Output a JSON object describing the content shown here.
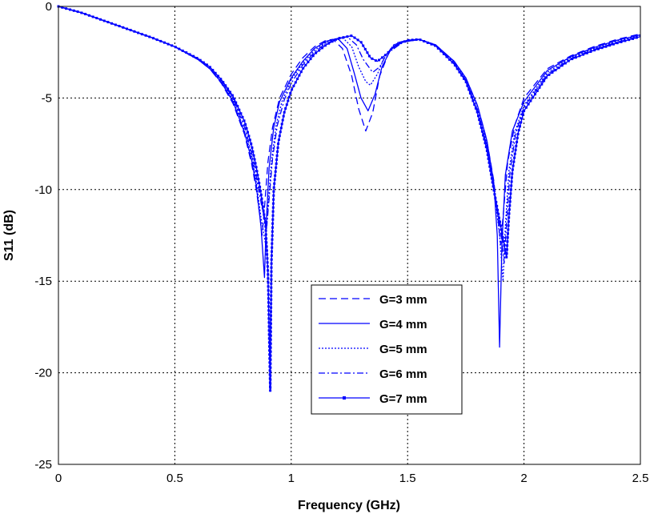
{
  "chart_data": {
    "type": "line",
    "title": "",
    "xlabel": "Frequency (GHz)",
    "ylabel": "S11 (dB)",
    "xlim": [
      0,
      2.5
    ],
    "ylim": [
      -25,
      0
    ],
    "xticks": [
      "0",
      "0.5",
      "1",
      "1.5",
      "2",
      "2.5"
    ],
    "xtick_values": [
      0,
      0.5,
      1,
      1.5,
      2,
      2.5
    ],
    "yticks": [
      "0",
      "-5",
      "-10",
      "-15",
      "-20",
      "-25"
    ],
    "ytick_values": [
      0,
      -5,
      -10,
      -15,
      -20,
      -25
    ],
    "grid": true,
    "legend_placement": "lower-center",
    "color": "#0000ff",
    "series": [
      {
        "name": "G=3 mm",
        "style": "dashed",
        "points": [
          [
            0,
            0
          ],
          [
            0.1,
            -0.35
          ],
          [
            0.2,
            -0.8
          ],
          [
            0.3,
            -1.25
          ],
          [
            0.4,
            -1.7
          ],
          [
            0.5,
            -2.2
          ],
          [
            0.6,
            -2.9
          ],
          [
            0.65,
            -3.4
          ],
          [
            0.7,
            -4.2
          ],
          [
            0.75,
            -5.3
          ],
          [
            0.8,
            -7
          ],
          [
            0.83,
            -8.6
          ],
          [
            0.85,
            -10
          ],
          [
            0.865,
            -11.4
          ],
          [
            0.875,
            -12.5
          ],
          [
            0.885,
            -11
          ],
          [
            0.9,
            -8.5
          ],
          [
            0.92,
            -6.6
          ],
          [
            0.95,
            -5
          ],
          [
            1.0,
            -3.7
          ],
          [
            1.05,
            -2.8
          ],
          [
            1.1,
            -2.2
          ],
          [
            1.15,
            -1.85
          ],
          [
            1.18,
            -1.8
          ],
          [
            1.22,
            -2.3
          ],
          [
            1.26,
            -3.8
          ],
          [
            1.29,
            -5.6
          ],
          [
            1.32,
            -6.8
          ],
          [
            1.35,
            -5.8
          ],
          [
            1.38,
            -3.8
          ],
          [
            1.42,
            -2.5
          ],
          [
            1.48,
            -1.95
          ],
          [
            1.55,
            -1.8
          ],
          [
            1.62,
            -2.1
          ],
          [
            1.7,
            -3.0
          ],
          [
            1.75,
            -3.9
          ],
          [
            1.8,
            -5.4
          ],
          [
            1.84,
            -7.3
          ],
          [
            1.87,
            -9.5
          ],
          [
            1.89,
            -11.8
          ],
          [
            1.9,
            -13
          ],
          [
            1.91,
            -11.5
          ],
          [
            1.93,
            -8.5
          ],
          [
            1.96,
            -6.5
          ],
          [
            2.0,
            -5
          ],
          [
            2.1,
            -3.4
          ],
          [
            2.2,
            -2.7
          ],
          [
            2.3,
            -2.2
          ],
          [
            2.4,
            -1.8
          ],
          [
            2.5,
            -1.5
          ]
        ]
      },
      {
        "name": "G=4 mm",
        "style": "solid",
        "points": [
          [
            0,
            0
          ],
          [
            0.1,
            -0.35
          ],
          [
            0.2,
            -0.8
          ],
          [
            0.3,
            -1.25
          ],
          [
            0.4,
            -1.7
          ],
          [
            0.5,
            -2.2
          ],
          [
            0.6,
            -2.9
          ],
          [
            0.65,
            -3.4
          ],
          [
            0.7,
            -4.15
          ],
          [
            0.75,
            -5.2
          ],
          [
            0.8,
            -6.9
          ],
          [
            0.83,
            -8.4
          ],
          [
            0.85,
            -9.8
          ],
          [
            0.87,
            -12
          ],
          [
            0.885,
            -14.8
          ],
          [
            0.892,
            -12
          ],
          [
            0.905,
            -8.8
          ],
          [
            0.925,
            -6.6
          ],
          [
            0.95,
            -5.2
          ],
          [
            1.0,
            -3.9
          ],
          [
            1.05,
            -3.0
          ],
          [
            1.1,
            -2.3
          ],
          [
            1.15,
            -1.9
          ],
          [
            1.2,
            -1.75
          ],
          [
            1.24,
            -2.3
          ],
          [
            1.27,
            -3.6
          ],
          [
            1.3,
            -5
          ],
          [
            1.33,
            -5.7
          ],
          [
            1.36,
            -4.8
          ],
          [
            1.39,
            -3.3
          ],
          [
            1.43,
            -2.3
          ],
          [
            1.48,
            -1.95
          ],
          [
            1.55,
            -1.8
          ],
          [
            1.62,
            -2.1
          ],
          [
            1.7,
            -3.0
          ],
          [
            1.75,
            -3.9
          ],
          [
            1.8,
            -5.4
          ],
          [
            1.84,
            -7.3
          ],
          [
            1.87,
            -9.6
          ],
          [
            1.885,
            -12.5
          ],
          [
            1.895,
            -18.6
          ],
          [
            1.905,
            -13
          ],
          [
            1.92,
            -9.2
          ],
          [
            1.95,
            -6.8
          ],
          [
            2.0,
            -5.2
          ],
          [
            2.1,
            -3.5
          ],
          [
            2.2,
            -2.75
          ],
          [
            2.3,
            -2.25
          ],
          [
            2.4,
            -1.85
          ],
          [
            2.5,
            -1.55
          ]
        ]
      },
      {
        "name": "G=5 mm",
        "style": "dotted",
        "points": [
          [
            0,
            0
          ],
          [
            0.1,
            -0.35
          ],
          [
            0.2,
            -0.8
          ],
          [
            0.3,
            -1.25
          ],
          [
            0.4,
            -1.7
          ],
          [
            0.5,
            -2.2
          ],
          [
            0.6,
            -2.9
          ],
          [
            0.65,
            -3.4
          ],
          [
            0.7,
            -4.1
          ],
          [
            0.75,
            -5.1
          ],
          [
            0.8,
            -6.8
          ],
          [
            0.83,
            -8.2
          ],
          [
            0.85,
            -9.6
          ],
          [
            0.87,
            -11.5
          ],
          [
            0.89,
            -13
          ],
          [
            0.9,
            -11
          ],
          [
            0.915,
            -8.5
          ],
          [
            0.935,
            -6.5
          ],
          [
            0.96,
            -5.2
          ],
          [
            1.0,
            -4.0
          ],
          [
            1.05,
            -3.1
          ],
          [
            1.1,
            -2.4
          ],
          [
            1.15,
            -1.95
          ],
          [
            1.22,
            -1.7
          ],
          [
            1.26,
            -2.2
          ],
          [
            1.29,
            -3.3
          ],
          [
            1.32,
            -4.1
          ],
          [
            1.34,
            -4.3
          ],
          [
            1.37,
            -3.7
          ],
          [
            1.4,
            -2.8
          ],
          [
            1.44,
            -2.1
          ],
          [
            1.5,
            -1.85
          ],
          [
            1.55,
            -1.8
          ],
          [
            1.62,
            -2.1
          ],
          [
            1.7,
            -3.05
          ],
          [
            1.75,
            -4
          ],
          [
            1.8,
            -5.6
          ],
          [
            1.84,
            -7.5
          ],
          [
            1.87,
            -9.8
          ],
          [
            1.895,
            -12.5
          ],
          [
            1.91,
            -15
          ],
          [
            1.92,
            -12
          ],
          [
            1.935,
            -9
          ],
          [
            1.96,
            -6.9
          ],
          [
            2.0,
            -5.4
          ],
          [
            2.1,
            -3.6
          ],
          [
            2.2,
            -2.8
          ],
          [
            2.3,
            -2.3
          ],
          [
            2.4,
            -1.9
          ],
          [
            2.5,
            -1.6
          ]
        ]
      },
      {
        "name": "G=6 mm",
        "style": "dashdot",
        "points": [
          [
            0,
            0
          ],
          [
            0.1,
            -0.35
          ],
          [
            0.2,
            -0.8
          ],
          [
            0.3,
            -1.25
          ],
          [
            0.4,
            -1.7
          ],
          [
            0.5,
            -2.2
          ],
          [
            0.6,
            -2.9
          ],
          [
            0.65,
            -3.4
          ],
          [
            0.7,
            -4.05
          ],
          [
            0.75,
            -5.0
          ],
          [
            0.8,
            -6.6
          ],
          [
            0.83,
            -8
          ],
          [
            0.85,
            -9.3
          ],
          [
            0.875,
            -11
          ],
          [
            0.895,
            -12
          ],
          [
            0.905,
            -10.5
          ],
          [
            0.92,
            -8.3
          ],
          [
            0.94,
            -6.5
          ],
          [
            0.97,
            -5.1
          ],
          [
            1.0,
            -4.2
          ],
          [
            1.05,
            -3.2
          ],
          [
            1.1,
            -2.5
          ],
          [
            1.15,
            -2.0
          ],
          [
            1.24,
            -1.65
          ],
          [
            1.28,
            -2.1
          ],
          [
            1.31,
            -2.9
          ],
          [
            1.35,
            -3.6
          ],
          [
            1.38,
            -3.3
          ],
          [
            1.41,
            -2.6
          ],
          [
            1.45,
            -2.0
          ],
          [
            1.5,
            -1.85
          ],
          [
            1.55,
            -1.8
          ],
          [
            1.62,
            -2.1
          ],
          [
            1.7,
            -3.1
          ],
          [
            1.75,
            -4.05
          ],
          [
            1.8,
            -5.7
          ],
          [
            1.84,
            -7.6
          ],
          [
            1.87,
            -9.9
          ],
          [
            1.9,
            -12.3
          ],
          [
            1.915,
            -14
          ],
          [
            1.925,
            -11.8
          ],
          [
            1.94,
            -9
          ],
          [
            1.965,
            -6.9
          ],
          [
            2.0,
            -5.5
          ],
          [
            2.1,
            -3.7
          ],
          [
            2.2,
            -2.85
          ],
          [
            2.3,
            -2.35
          ],
          [
            2.4,
            -1.95
          ],
          [
            2.5,
            -1.65
          ]
        ]
      },
      {
        "name": "G=7 mm",
        "style": "solid-marker",
        "points": [
          [
            0,
            0
          ],
          [
            0.1,
            -0.35
          ],
          [
            0.2,
            -0.8
          ],
          [
            0.3,
            -1.25
          ],
          [
            0.4,
            -1.7
          ],
          [
            0.5,
            -2.2
          ],
          [
            0.6,
            -2.85
          ],
          [
            0.65,
            -3.3
          ],
          [
            0.7,
            -4.0
          ],
          [
            0.75,
            -4.9
          ],
          [
            0.8,
            -6.3
          ],
          [
            0.83,
            -7.6
          ],
          [
            0.85,
            -8.8
          ],
          [
            0.87,
            -10.2
          ],
          [
            0.89,
            -12
          ],
          [
            0.9,
            -14.5
          ],
          [
            0.91,
            -21
          ],
          [
            0.915,
            -14
          ],
          [
            0.925,
            -10
          ],
          [
            0.945,
            -7.4
          ],
          [
            0.97,
            -5.8
          ],
          [
            1.0,
            -4.6
          ],
          [
            1.05,
            -3.4
          ],
          [
            1.1,
            -2.6
          ],
          [
            1.15,
            -2.1
          ],
          [
            1.2,
            -1.75
          ],
          [
            1.26,
            -1.6
          ],
          [
            1.3,
            -1.95
          ],
          [
            1.34,
            -2.8
          ],
          [
            1.37,
            -3.0
          ],
          [
            1.41,
            -2.6
          ],
          [
            1.45,
            -2.1
          ],
          [
            1.5,
            -1.85
          ],
          [
            1.55,
            -1.8
          ],
          [
            1.62,
            -2.15
          ],
          [
            1.7,
            -3.15
          ],
          [
            1.75,
            -4.1
          ],
          [
            1.8,
            -5.8
          ],
          [
            1.84,
            -7.8
          ],
          [
            1.87,
            -10
          ],
          [
            1.9,
            -12
          ],
          [
            1.925,
            -13.7
          ],
          [
            1.935,
            -11.5
          ],
          [
            1.95,
            -9
          ],
          [
            1.975,
            -6.9
          ],
          [
            2.0,
            -5.7
          ],
          [
            2.1,
            -3.8
          ],
          [
            2.2,
            -2.9
          ],
          [
            2.3,
            -2.4
          ],
          [
            2.4,
            -2.0
          ],
          [
            2.5,
            -1.65
          ]
        ]
      }
    ]
  }
}
